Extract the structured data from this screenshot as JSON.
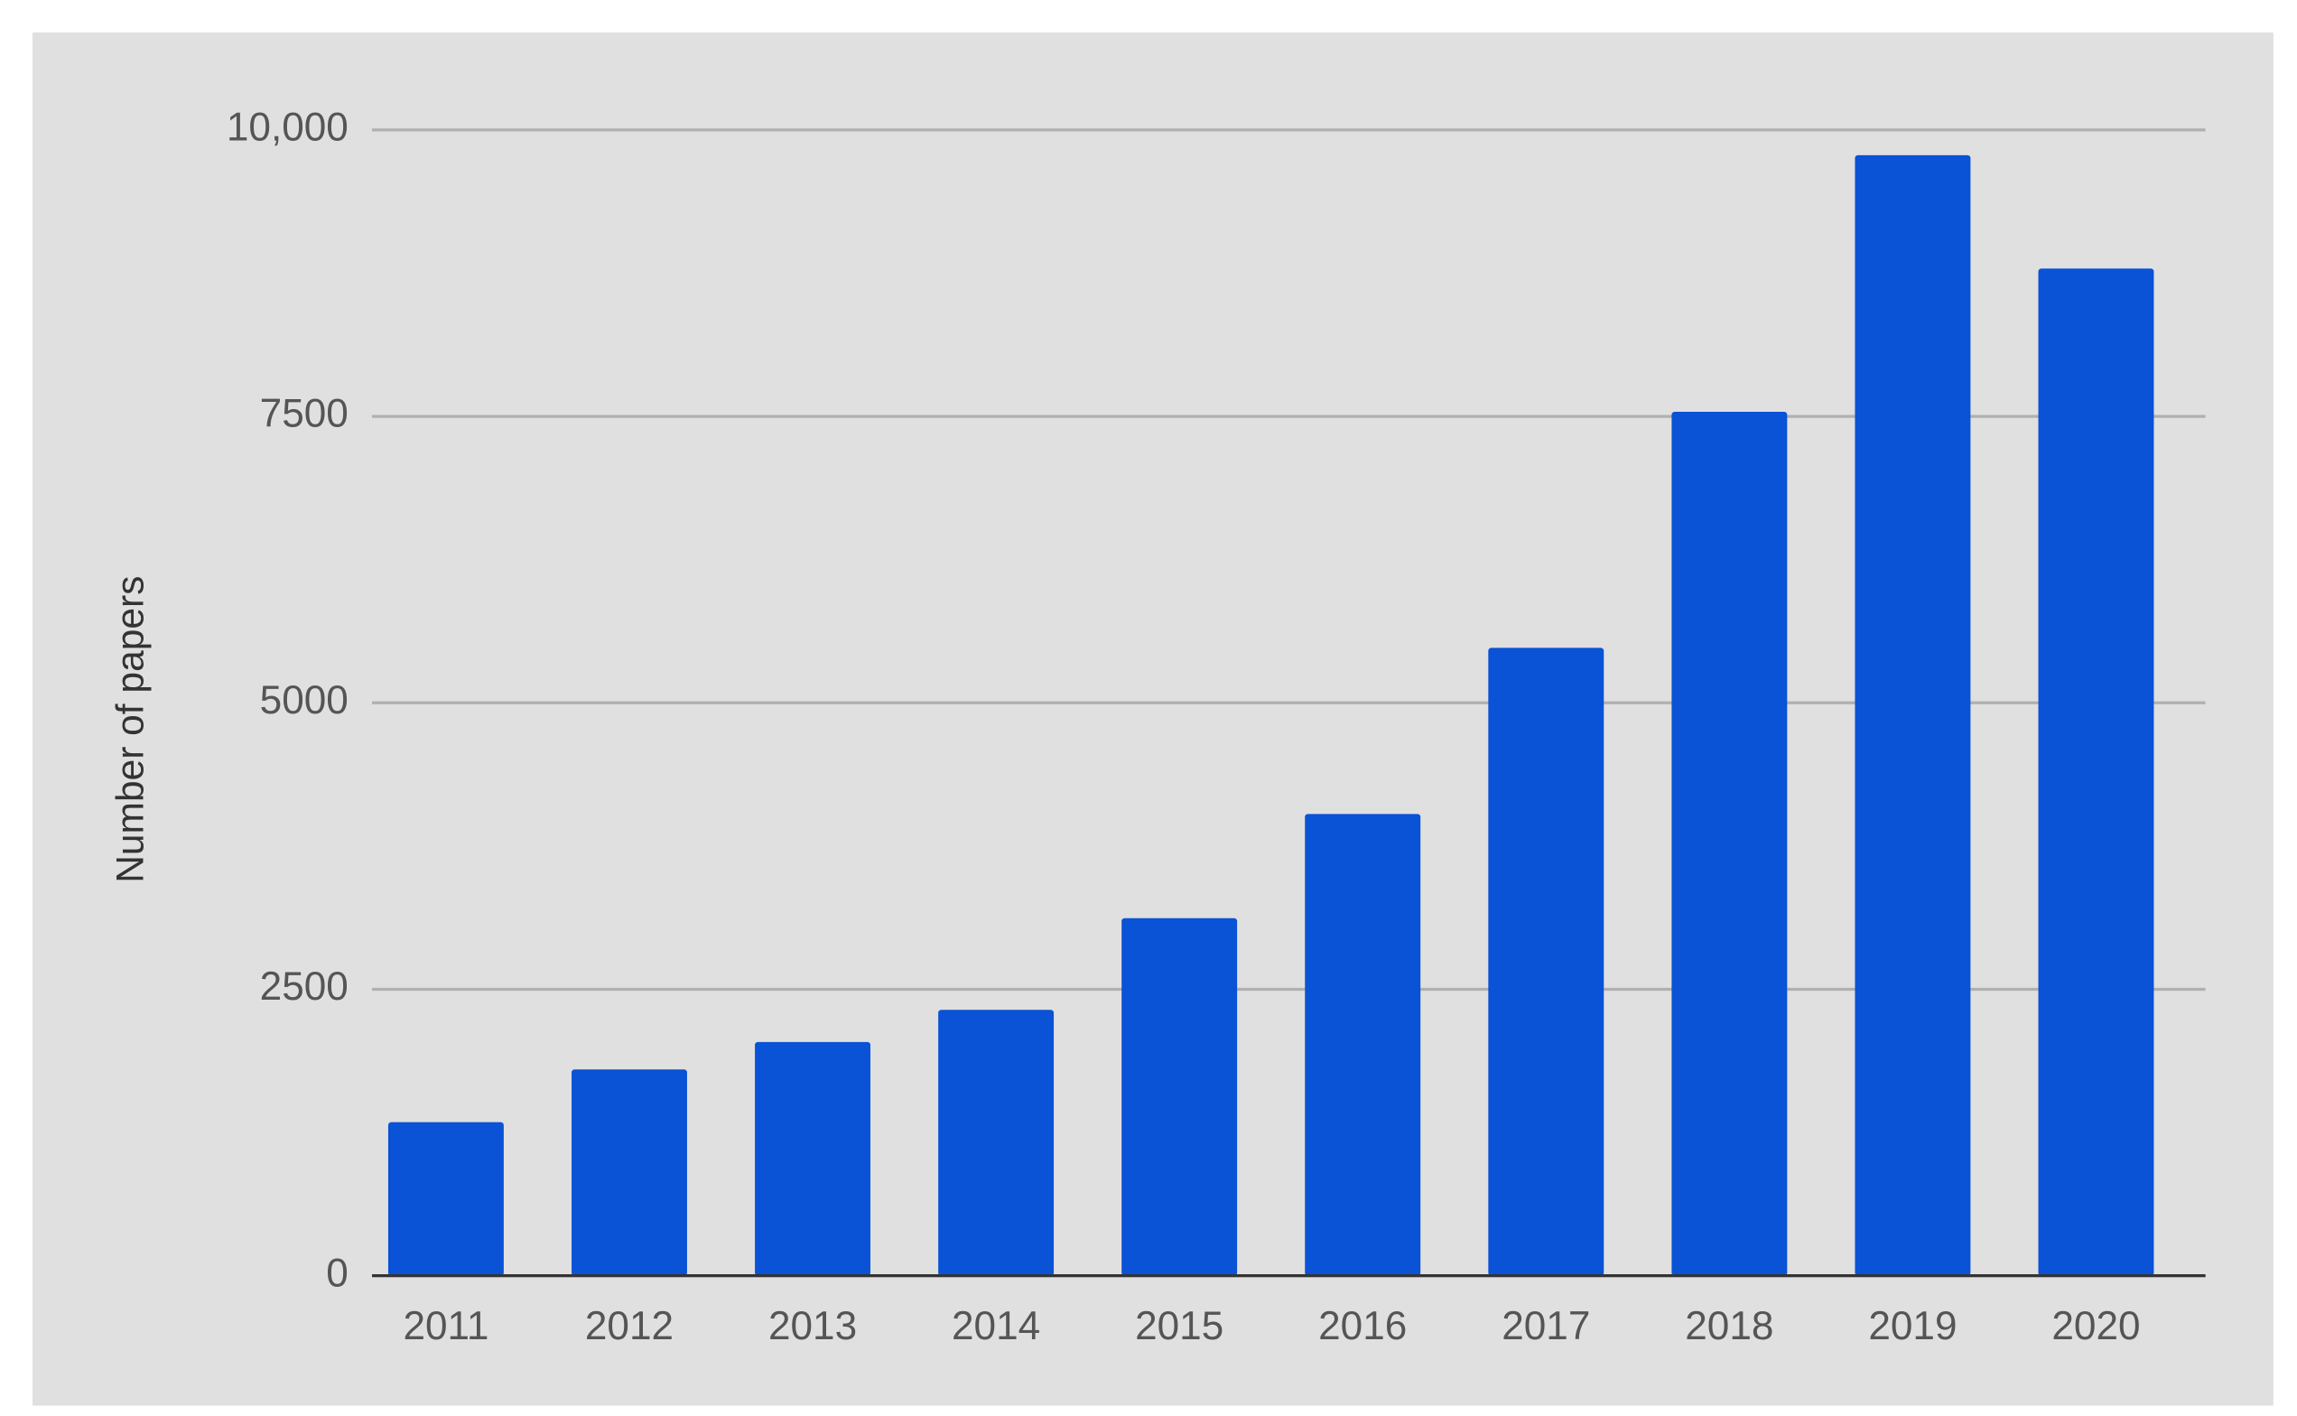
{
  "chart_data": {
    "type": "bar",
    "y_label": "Number of papers",
    "categories": [
      "2011",
      "2012",
      "2013",
      "2014",
      "2015",
      "2016",
      "2017",
      "2018",
      "2019",
      "2020"
    ],
    "values": [
      1340,
      1800,
      2040,
      2320,
      3120,
      4030,
      5480,
      7540,
      9780,
      8790
    ],
    "color": "#0a52d6",
    "ylim": [
      0,
      10000
    ],
    "yticks": [
      0,
      2500,
      5000,
      7500,
      {
        "value": 10000,
        "label": "10,000"
      }
    ],
    "grid": true
  }
}
